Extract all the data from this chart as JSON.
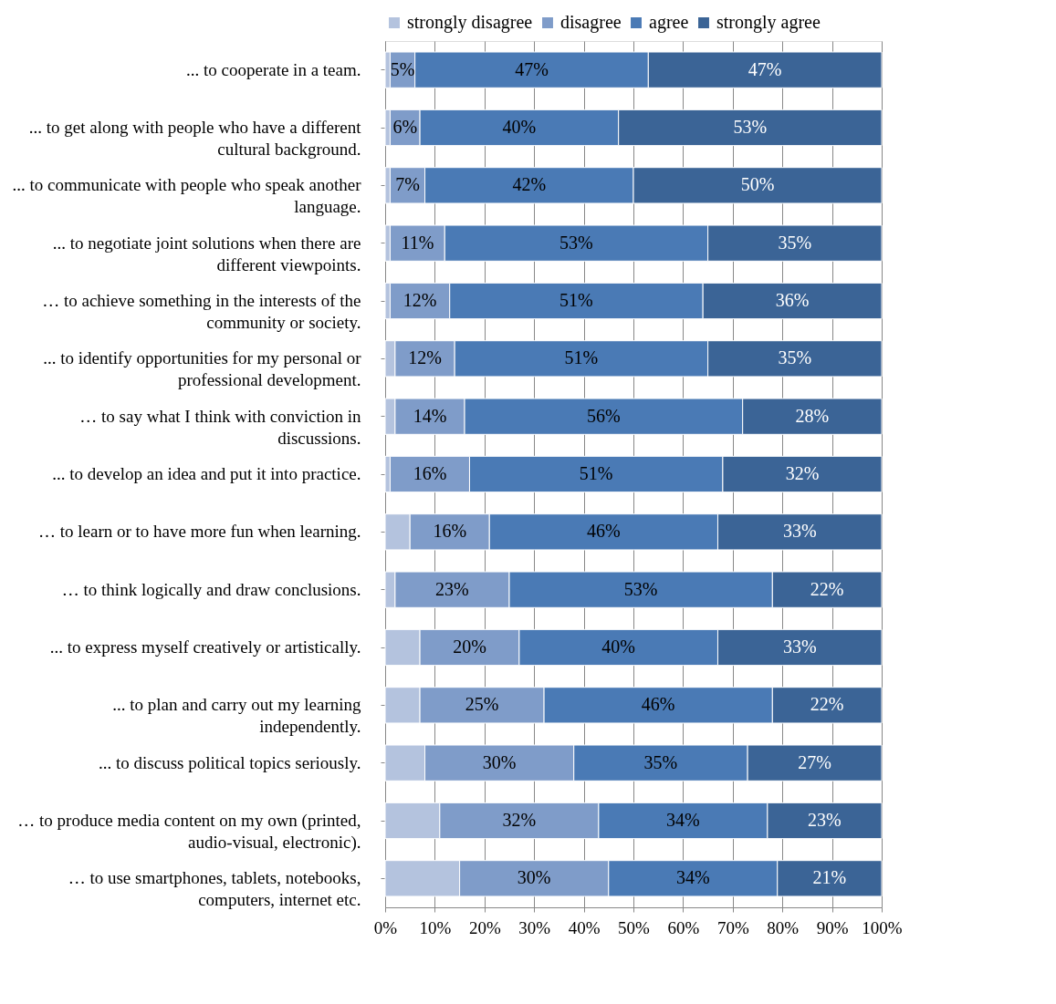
{
  "chart_data": {
    "type": "bar",
    "orientation": "horizontal",
    "stacked": true,
    "legend": "top",
    "grid": "x",
    "categories": [
      "... to cooperate in a team.",
      "... to get along with people who have a different\ncultural background.",
      "... to communicate with people who speak another\nlanguage.",
      "... to negotiate joint solutions when there are\ndifferent viewpoints.",
      "… to achieve something in the interests of the\ncommunity or society.",
      "... to identify opportunities for my personal or\nprofessional development.",
      "… to say what I think with conviction in\ndiscussions.",
      "... to develop an idea and put it into practice.",
      "… to learn or to have more fun when learning.",
      "… to think logically and draw conclusions.",
      "... to express myself creatively or artistically.",
      "... to plan and carry out my learning\nindependently.",
      "... to discuss political topics seriously.",
      "… to produce media content on my own (printed,\naudio-visual, electronic).",
      "… to use smartphones, tablets, notebooks,\ncomputers, internet etc."
    ],
    "series": [
      {
        "name": "strongly disagree",
        "color": "#b4c3de",
        "values": [
          1,
          1,
          1,
          1,
          1,
          2,
          2,
          1,
          5,
          2,
          7,
          7,
          8,
          11,
          15
        ],
        "value_labels": [
          null,
          null,
          null,
          null,
          null,
          null,
          null,
          null,
          null,
          null,
          null,
          null,
          null,
          null,
          null
        ]
      },
      {
        "name": "disagree",
        "color": "#7f9cc9",
        "values": [
          5,
          6,
          7,
          11,
          12,
          12,
          14,
          16,
          16,
          23,
          20,
          25,
          30,
          32,
          30
        ],
        "value_labels": [
          "5%",
          "6%",
          "7%",
          "11%",
          "12%",
          "12%",
          "14%",
          "16%",
          "16%",
          "23%",
          "20%",
          "25%",
          "30%",
          "32%",
          "30%"
        ]
      },
      {
        "name": "agree",
        "color": "#4a7ab5",
        "values": [
          47,
          40,
          42,
          53,
          51,
          51,
          56,
          51,
          46,
          53,
          40,
          46,
          35,
          34,
          34
        ],
        "value_labels": [
          "47%",
          "40%",
          "42%",
          "53%",
          "51%",
          "51%",
          "56%",
          "51%",
          "46%",
          "53%",
          "40%",
          "46%",
          "35%",
          "34%",
          "34%"
        ]
      },
      {
        "name": "strongly agree",
        "color": "#3b6496",
        "values": [
          47,
          53,
          50,
          35,
          36,
          35,
          28,
          32,
          33,
          22,
          33,
          22,
          27,
          23,
          21
        ],
        "value_labels": [
          "47%",
          "53%",
          "50%",
          "35%",
          "36%",
          "35%",
          "28%",
          "32%",
          "33%",
          "22%",
          "33%",
          "22%",
          "27%",
          "23%",
          "21%"
        ]
      }
    ],
    "xlim": [
      0,
      100
    ],
    "xticks": [
      {
        "value": 0,
        "label": "0%"
      },
      {
        "value": 10,
        "label": "10%"
      },
      {
        "value": 20,
        "label": "20%"
      },
      {
        "value": 30,
        "label": "30%"
      },
      {
        "value": 40,
        "label": "40%"
      },
      {
        "value": 50,
        "label": "50%"
      },
      {
        "value": 60,
        "label": "60%"
      },
      {
        "value": 70,
        "label": "70%"
      },
      {
        "value": 80,
        "label": "80%"
      },
      {
        "value": 90,
        "label": "90%"
      },
      {
        "value": 100,
        "label": "100%"
      }
    ]
  }
}
